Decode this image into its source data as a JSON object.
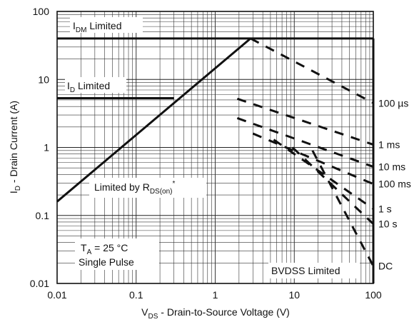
{
  "chart_data": {
    "type": "line",
    "log_x": true,
    "log_y": true,
    "xlim": [
      0.01,
      100
    ],
    "ylim": [
      0.01,
      100
    ],
    "grid": true,
    "x_tick_labels": [
      "0.01",
      "0.1",
      "1",
      "10",
      "100"
    ],
    "y_tick_labels": [
      "0.01",
      "0.1",
      "1",
      "10",
      "100"
    ],
    "xlabel": {
      "main": "V",
      "sub": "DS",
      "rest": " - Drain-to-Source Voltage (V)"
    },
    "ylabel": {
      "main": "I",
      "sub": "D",
      "rest": " - Drain Current (A)"
    },
    "annotations": {
      "idm_limited": {
        "main": "I",
        "sub": "DM",
        "rest": " Limited"
      },
      "id_limited": {
        "main": "I",
        "sub": "D",
        "rest": " Limited"
      },
      "rds_limited": {
        "main": "Limited by R",
        "sub": "DS(on)",
        "sup": "*"
      },
      "ta": {
        "main": "T",
        "sub": "A",
        "rest": " = 25 °C"
      },
      "single_pulse": "Single Pulse",
      "bvdss": "BVDSS Limited"
    },
    "limits": {
      "idm_current": 40,
      "id_current": 5.3,
      "bvdss_voltage": 100,
      "rds_on_line": [
        [
          0.01,
          0.16
        ],
        [
          2.8,
          40
        ]
      ]
    },
    "series": [
      {
        "name": "100 µs",
        "points": [
          [
            2.8,
            40
          ],
          [
            100,
            4.5
          ]
        ]
      },
      {
        "name": "1 ms",
        "points": [
          [
            1.9,
            5.2
          ],
          [
            100,
            1.1
          ]
        ]
      },
      {
        "name": "10 ms",
        "points": [
          [
            1.9,
            2.7
          ],
          [
            100,
            0.52
          ]
        ]
      },
      {
        "name": "100 ms",
        "points": [
          [
            3.0,
            1.6
          ],
          [
            100,
            0.29
          ]
        ]
      },
      {
        "name": "1 s",
        "points": [
          [
            5.5,
            1.3
          ],
          [
            100,
            0.125
          ]
        ]
      },
      {
        "name": "10 s",
        "points": [
          [
            9.5,
            1.0
          ],
          [
            100,
            0.075
          ]
        ]
      },
      {
        "name": "DC",
        "points": [
          [
            17,
            0.9
          ],
          [
            100,
            0.018
          ]
        ]
      }
    ]
  }
}
